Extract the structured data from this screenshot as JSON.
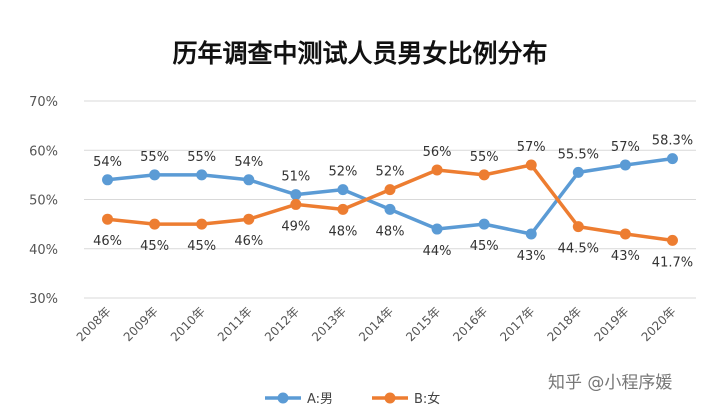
{
  "chart_data": {
    "type": "line",
    "title": "历年调查中测试人员男女比例分布",
    "xlabel": "",
    "ylabel": "",
    "categories": [
      "2008年",
      "2009年",
      "2010年",
      "2011年",
      "2012年",
      "2013年",
      "2014年",
      "2015年",
      "2016年",
      "2017年",
      "2018年",
      "2019年",
      "2020年"
    ],
    "ylim": [
      30,
      70
    ],
    "yticks": [
      "30%",
      "40%",
      "50%",
      "60%",
      "70%"
    ],
    "grid": true,
    "legend_position": "bottom",
    "series": [
      {
        "name": "A:男",
        "color": "#5B9BD5",
        "values": [
          54,
          55,
          55,
          54,
          51,
          52,
          48,
          44,
          45,
          43,
          55.5,
          57,
          58.3
        ],
        "labels": [
          "54%",
          "55%",
          "55%",
          "54%",
          "51%",
          "52%",
          "48%",
          "44%",
          "45%",
          "43%",
          "55.5%",
          "57%",
          "58.3%"
        ]
      },
      {
        "name": "B:女",
        "color": "#ED7D31",
        "values": [
          46,
          45,
          45,
          46,
          49,
          48,
          52,
          56,
          55,
          57,
          44.5,
          43,
          41.7
        ],
        "labels": [
          "46%",
          "45%",
          "45%",
          "46%",
          "49%",
          "48%",
          "52%",
          "56%",
          "55%",
          "57%",
          "44.5%",
          "43%",
          "41.7%"
        ]
      }
    ]
  },
  "watermark": "知乎 @小程序媛"
}
